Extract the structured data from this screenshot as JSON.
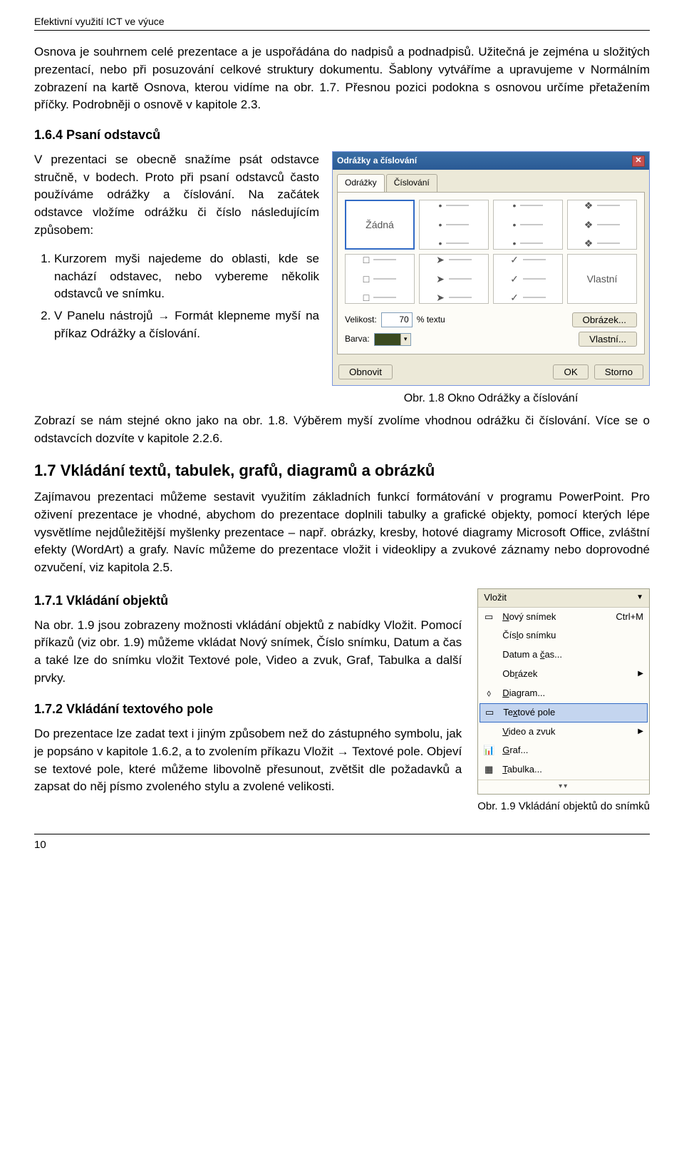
{
  "header": "Efektivní využití ICT ve výuce",
  "p1": "Osnova je souhrnem celé prezentace a je uspořádána do nadpisů a podnadpisů. Užitečná je zejména u složitých prezentací, nebo při posuzování celkové struktury dokumentu. Šablony vytváříme a upravujeme v Normálním zobrazení na kartě Osnova, kterou vidíme na obr. 1.7. Přesnou pozici podokna s osnovou určíme přetažením příčky. Podrobněji o osnově v kapitole 2.3.",
  "s164": {
    "heading": "1.6.4 Psaní odstavců",
    "para": "V prezentaci se obecně snažíme psát odstavce stručně, v bodech. Proto při psaní odstavců často používáme odrážky a číslování. Na začátek odstavce vložíme odrážku či číslo následujícím způsobem:",
    "li1": "Kurzorem myši najedeme do oblasti, kde se nachází odstavec, nebo vybereme několik odstavců ve snímku.",
    "li2": "V Panelu nástrojů → Formát klepneme myší na příkaz Odrážky a číslování.",
    "after": "Zobrazí se nám stejné okno jako na obr. 1.8. Výběrem myší zvolíme vhodnou odrážku či číslování. Více se o odstavcích dozvíte v kapitole 2.2.6.",
    "caption": "Obr. 1.8 Okno Odrážky a číslování"
  },
  "dialog": {
    "title": "Odrážky a číslování",
    "tab1": "Odrážky",
    "tab2": "Číslování",
    "none_label": "Žádná",
    "custom_label": "Vlastní",
    "size_label": "Velikost:",
    "size_value": "70",
    "size_unit": "% textu",
    "color_label": "Barva:",
    "btn_image": "Obrázek...",
    "btn_custom": "Vlastní...",
    "btn_reset": "Obnovit",
    "btn_ok": "OK",
    "btn_cancel": "Storno",
    "color_swatch": "#3a4a1f",
    "bullets": [
      "•",
      "•",
      "❖",
      "□",
      "➤",
      "✓"
    ]
  },
  "s17": {
    "heading": "1.7 Vkládání textů, tabulek, grafů, diagramů a obrázků",
    "para": "Zajímavou prezentaci můžeme sestavit využitím základních funkcí formátování v programu PowerPoint. Pro oživení prezentace je vhodné, abychom do prezentace doplnili tabulky a grafické objekty, pomocí kterých lépe vysvětlíme nejdůležitější myšlenky prezentace – např. obrázky, kresby, hotové diagramy Microsoft Office, zvláštní efekty (WordArt) a grafy. Navíc můžeme do prezentace vložit i videoklipy a zvukové záznamy nebo doprovodné ozvučení, viz kapitola 2.5."
  },
  "s171": {
    "heading": "1.7.1 Vkládání objektů",
    "para": "Na obr. 1.9 jsou zobrazeny možnosti vkládání objektů z nabídky Vložit. Pomocí příkazů (viz obr. 1.9) můžeme vkládat Nový snímek, Číslo snímku, Datum a čas a také lze do snímku vložit Textové pole, Video a zvuk, Graf, Tabulka a další prvky."
  },
  "s172": {
    "heading": "1.7.2 Vkládání textového pole",
    "para": "Do prezentace lze zadat text i jiným způsobem než do zástupného symbolu, jak je popsáno v kapitole 1.6.2, a to zvolením příkazu Vložit → Textové pole. Objeví se textové pole, které můžeme libovolně přesunout, zvětšit dle požadavků a zapsat do něj písmo zvoleného stylu a zvolené velikosti."
  },
  "menu": {
    "title": "Vložit",
    "items": [
      {
        "icon": "▭",
        "label": "Nový snímek",
        "shortcut": "Ctrl+M",
        "ul": "N"
      },
      {
        "icon": "",
        "label": "Číslo snímku",
        "ul": "l"
      },
      {
        "icon": "",
        "label": "Datum a čas...",
        "ul": "č"
      },
      {
        "icon": "",
        "label": "Obrázek",
        "arrow": true,
        "ul": "r"
      },
      {
        "icon": "⬨",
        "label": "Diagram...",
        "ul": "D"
      },
      {
        "icon": "▭",
        "label": "Textové pole",
        "hl": true,
        "ul": "x"
      },
      {
        "icon": "",
        "label": "Video a zvuk",
        "arrow": true,
        "ul": "V"
      },
      {
        "icon": "📊",
        "label": "Graf...",
        "ul": "G"
      },
      {
        "icon": "▦",
        "label": "Tabulka...",
        "ul": "T"
      }
    ],
    "caption": "Obr. 1.9 Vkládání objektů do snímků"
  },
  "page_number": "10"
}
